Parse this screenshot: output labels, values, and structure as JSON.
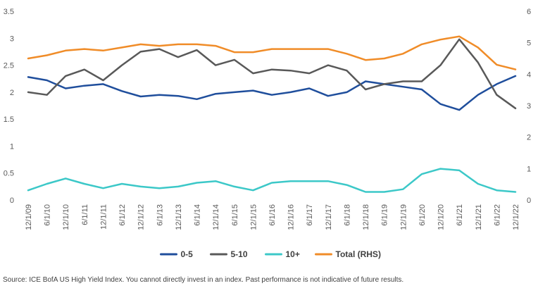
{
  "chart_data": {
    "type": "line",
    "x_labels": [
      "12/1/09",
      "6/1/10",
      "12/1/10",
      "6/1/11",
      "12/1/11",
      "6/1/12",
      "12/1/12",
      "6/1/13",
      "12/1/13",
      "6/1/14",
      "12/1/14",
      "6/1/15",
      "12/1/15",
      "6/1/16",
      "12/1/16",
      "6/1/17",
      "12/1/17",
      "6/1/18",
      "12/1/18",
      "6/1/19",
      "12/1/19",
      "6/1/20",
      "12/1/20",
      "6/1/21",
      "12/1/21",
      "6/1/22",
      "12/1/22"
    ],
    "left_axis": {
      "min": 0,
      "max": 3.5,
      "ticks": [
        "0",
        "0.5",
        "1",
        "1.5",
        "2",
        "2.5",
        "3",
        "3.5"
      ]
    },
    "right_axis": {
      "min": 0,
      "max": 6,
      "ticks": [
        "0",
        "1",
        "2",
        "3",
        "4",
        "5",
        "6"
      ]
    },
    "grid": false,
    "legend_position": "bottom",
    "series": [
      {
        "name": "0-5",
        "axis": "left",
        "color": "#1f4e9c",
        "values": [
          2.28,
          2.22,
          2.07,
          2.12,
          2.15,
          2.02,
          1.92,
          1.95,
          1.93,
          1.87,
          1.97,
          2.0,
          2.03,
          1.95,
          2.0,
          2.07,
          1.93,
          2.0,
          2.2,
          2.15,
          2.1,
          2.05,
          1.78,
          1.67,
          1.95,
          2.15,
          2.3
        ]
      },
      {
        "name": "5-10",
        "axis": "left",
        "color": "#595959",
        "values": [
          2.0,
          1.95,
          2.3,
          2.42,
          2.22,
          2.5,
          2.75,
          2.8,
          2.65,
          2.78,
          2.5,
          2.6,
          2.35,
          2.42,
          2.4,
          2.35,
          2.5,
          2.4,
          2.05,
          2.15,
          2.2,
          2.2,
          2.5,
          2.98,
          2.55,
          1.95,
          1.7
        ]
      },
      {
        "name": "10+",
        "axis": "left",
        "color": "#3cc8c8",
        "values": [
          0.18,
          0.3,
          0.4,
          0.3,
          0.22,
          0.3,
          0.25,
          0.22,
          0.25,
          0.32,
          0.35,
          0.25,
          0.18,
          0.32,
          0.35,
          0.35,
          0.35,
          0.28,
          0.15,
          0.15,
          0.2,
          0.48,
          0.58,
          0.55,
          0.3,
          0.18,
          0.15
        ]
      },
      {
        "name": "Total (RHS)",
        "axis": "right",
        "color": "#f08c28",
        "values": [
          4.5,
          4.6,
          4.75,
          4.8,
          4.75,
          4.85,
          4.95,
          4.9,
          4.95,
          4.95,
          4.9,
          4.7,
          4.7,
          4.8,
          4.8,
          4.8,
          4.8,
          4.65,
          4.45,
          4.5,
          4.65,
          4.95,
          5.1,
          5.2,
          4.85,
          4.3,
          4.15
        ]
      }
    ]
  },
  "source_text": "Source: ICE BofA US High Yield Index. You cannot directly invest in an index. Past performance is not indicative of future results."
}
